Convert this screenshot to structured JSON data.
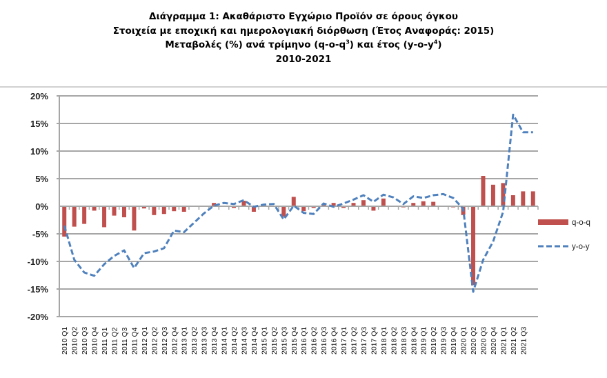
{
  "title": {
    "line1": "Διάγραμμα 1: Ακαθάριστο Εγχώριο Προϊόν σε όρους όγκου",
    "line2": "Στοιχεία με εποχική και ημερολογιακή διόρθωση (Έτος Αναφοράς: 2015)",
    "line3_prefix": "Μεταβολές (%) ανά τρίμηνο (q-o-q",
    "line3_sup1": "3",
    "line3_mid": ") και έτος (y-o-y",
    "line3_sup2": "4",
    "line3_suffix": ")",
    "line4": "2010-2021"
  },
  "colors": {
    "bar": "#c0504d",
    "line": "#4f81bd",
    "grid": "#a6a6a6",
    "axis": "#a6a6a6"
  },
  "chart_data": {
    "type": "bar",
    "title": "Διάγραμμα 1: Ακαθάριστο Εγχώριο Προϊόν σε όρους όγκου — Μεταβολές (%) ανά τρίμηνο (q-o-q) και έτος (y-o-y), 2010-2021",
    "xlabel": "",
    "ylabel": "",
    "ylim": [
      -20,
      20
    ],
    "yticks": [
      "20%",
      "15%",
      "10%",
      "5%",
      "0%",
      "-5%",
      "-10%",
      "-15%",
      "-20%"
    ],
    "grid": true,
    "legend_position": "right",
    "categories": [
      "2010 Q1",
      "2010 Q2",
      "2010 Q3",
      "2010 Q4",
      "2011 Q1",
      "2011 Q2",
      "2011 Q3",
      "2011 Q4",
      "2012 Q1",
      "2012 Q2",
      "2012 Q3",
      "2012 Q4",
      "2013 Q1",
      "2013 Q2",
      "2013 Q3",
      "2013 Q4",
      "2014 Q1",
      "2014 Q2",
      "2014 Q3",
      "2014 Q4",
      "2015 Q1",
      "2015 Q2",
      "2015 Q3",
      "2015 Q4",
      "2016 Q1",
      "2016 Q2",
      "2016 Q3",
      "2016 Q4",
      "2017 Q1",
      "2017 Q2",
      "2017 Q3",
      "2017 Q4",
      "2018 Q1",
      "2018 Q2",
      "2018 Q3",
      "2018 Q4",
      "2019 Q1",
      "2019 Q2",
      "2019 Q3",
      "2019 Q4",
      "2020 Q1",
      "2020 Q2",
      "2020 Q3",
      "2020 Q4",
      "2021 Q1",
      "2021 Q2",
      "2021 Q3",
      ""
    ],
    "series": [
      {
        "name": "q-o-q",
        "type": "bar",
        "values": [
          -5.5,
          -3.7,
          -3.2,
          -0.8,
          -3.8,
          -1.7,
          -2.0,
          -4.4,
          -0.4,
          -1.6,
          -1.4,
          -0.9,
          -1.0,
          0.1,
          0.0,
          0.6,
          0.0,
          -0.3,
          1.0,
          -1.0,
          0.4,
          0.0,
          -1.9,
          1.7,
          -0.9,
          -0.3,
          0.4,
          0.6,
          -0.3,
          0.6,
          1.1,
          -0.8,
          1.4,
          0.1,
          -0.2,
          0.6,
          0.9,
          0.8,
          0.0,
          -0.2,
          -1.6,
          -14.3,
          5.5,
          3.9,
          4.2,
          2.0,
          2.7,
          2.7
        ]
      },
      {
        "name": "y-o-y",
        "type": "line",
        "values": [
          -3.5,
          -9.7,
          -12.0,
          -12.6,
          -10.5,
          -9.0,
          -8.0,
          -11.2,
          -8.5,
          -8.2,
          -7.6,
          -4.4,
          -4.7,
          -3.0,
          -1.3,
          0.1,
          0.6,
          0.4,
          1.1,
          -0.1,
          0.3,
          0.4,
          -2.4,
          0.1,
          -1.2,
          -1.4,
          0.5,
          -0.1,
          0.5,
          1.2,
          2.0,
          0.8,
          2.1,
          1.6,
          0.4,
          1.8,
          1.5,
          2.0,
          2.2,
          1.5,
          -0.5,
          -15.5,
          -9.7,
          -6.4,
          -1.0,
          16.6,
          13.4,
          13.4
        ]
      }
    ]
  },
  "legend": {
    "items": [
      {
        "label": "q-o-q",
        "style": "bar"
      },
      {
        "label": "y-o-y",
        "style": "dashed-line"
      }
    ]
  }
}
